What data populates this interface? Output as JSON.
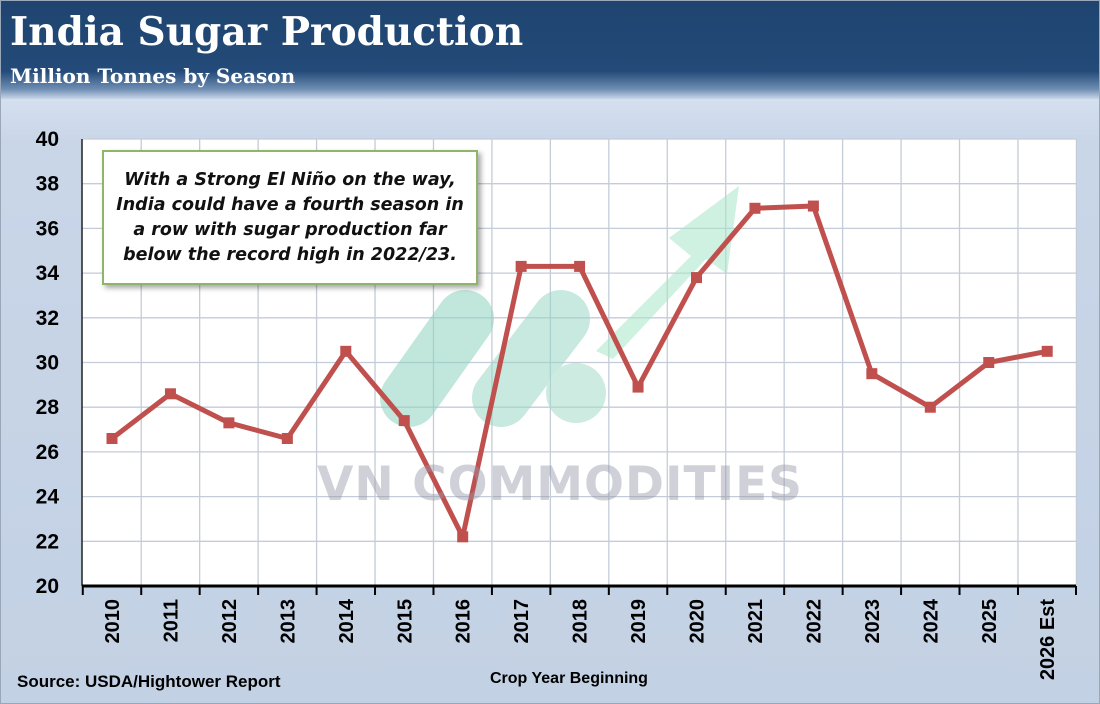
{
  "header": {
    "title": "India Sugar Production",
    "subtitle": "Million Tonnes by Season"
  },
  "annotation": {
    "text": "With a Strong El Niño on the way, India could have a fourth season in a row with sugar production far below the record high in 2022/23."
  },
  "watermark": {
    "text": "VN COMMODITIES"
  },
  "footer": {
    "source": "Source: USDA/Hightower Report"
  },
  "colors": {
    "series": "#c0504d",
    "plot_background": "#ffffff",
    "gridline": "#c4ccd8",
    "header": "#234a78",
    "note_border": "#8fb56b"
  },
  "chart_data": {
    "type": "line",
    "title": "India Sugar Production",
    "subtitle": "Million Tonnes by Season",
    "xlabel": "Crop Year Beginning",
    "ylabel": "",
    "categories": [
      "2010",
      "2011",
      "2012",
      "2013",
      "2014",
      "2015",
      "2016",
      "2017",
      "2018",
      "2019",
      "2020",
      "2021",
      "2022",
      "2023",
      "2024",
      "2025",
      "2026 Est"
    ],
    "series": [
      {
        "values": [
          26.6,
          28.6,
          27.3,
          26.6,
          30.5,
          27.4,
          22.2,
          34.3,
          34.3,
          28.9,
          33.8,
          36.9,
          37.0,
          29.5,
          28.0,
          30.0,
          30.5
        ],
        "color": "#c0504d",
        "marker": "square"
      }
    ],
    "ylim": [
      20,
      40
    ],
    "yticks": [
      20,
      22,
      24,
      26,
      28,
      30,
      32,
      34,
      36,
      38,
      40
    ],
    "grid": true,
    "legend": "none"
  }
}
